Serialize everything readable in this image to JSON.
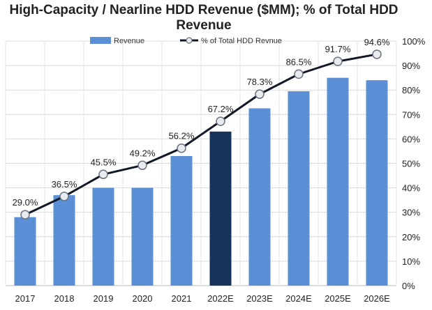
{
  "chart_data": {
    "type": "bar+line",
    "title_lines": [
      "High-Capacity / Nearline HDD Revenue ($MM); % of Total HDD",
      "Revenue"
    ],
    "categories": [
      "2017",
      "2018",
      "2019",
      "2020",
      "2021",
      "2022E",
      "2023E",
      "2024E",
      "2025E",
      "2026E"
    ],
    "bar_series": {
      "name": "Revenue",
      "values": [
        28,
        37,
        40,
        40,
        53,
        63,
        72.5,
        79.5,
        85,
        84
      ],
      "color": "#5b8fd6",
      "highlight_color": "#16335c",
      "highlight_index": 5
    },
    "line_series": {
      "name": "% of Total HDD Revnue",
      "values": [
        29.0,
        36.5,
        45.5,
        49.2,
        56.2,
        67.2,
        78.3,
        86.5,
        91.7,
        94.6
      ],
      "labels": [
        "29.0%",
        "36.5%",
        "45.5%",
        "49.2%",
        "56.2%",
        "67.2%",
        "78.3%",
        "86.5%",
        "91.7%",
        "94.6%"
      ],
      "color": "#111827"
    },
    "y_right": {
      "min": 0,
      "max": 100,
      "ticks": [
        "0%",
        "10%",
        "20%",
        "30%",
        "40%",
        "50%",
        "60%",
        "70%",
        "80%",
        "90%",
        "100%"
      ]
    },
    "bar_axis_max": 100,
    "legend_position": "top",
    "grid": true
  }
}
